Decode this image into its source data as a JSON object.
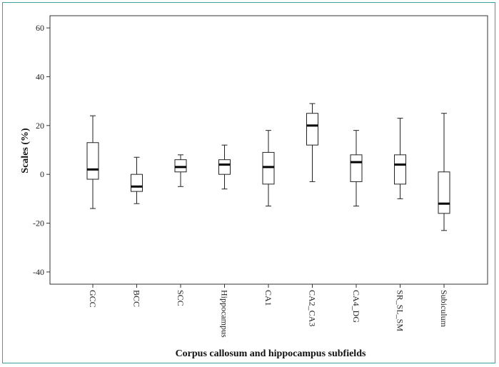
{
  "chart_data": {
    "type": "boxplot",
    "xlabel": "Corpus callosum and hippocampus subfields",
    "ylabel": "Scales (%)",
    "ylim": [
      -45,
      65
    ],
    "yticks": [
      60,
      40,
      20,
      0,
      -20,
      -40
    ],
    "grid": false,
    "categories": [
      "GCC",
      "BCC",
      "SCC",
      "Hippocampus",
      "CA1",
      "CA2_CA3",
      "CA4_DG",
      "SR_SL_SM",
      "Subiculum"
    ],
    "boxes": [
      {
        "min": -14,
        "q1": -2,
        "median": 2,
        "q3": 13,
        "max": 24
      },
      {
        "min": -12,
        "q1": -7,
        "median": -5,
        "q3": 0,
        "max": 7
      },
      {
        "min": -5,
        "q1": 1,
        "median": 3,
        "q3": 6,
        "max": 8
      },
      {
        "min": -6,
        "q1": 0,
        "median": 4,
        "q3": 6,
        "max": 12
      },
      {
        "min": -13,
        "q1": -4,
        "median": 3,
        "q3": 9,
        "max": 18
      },
      {
        "min": -3,
        "q1": 12,
        "median": 20,
        "q3": 25,
        "max": 29
      },
      {
        "min": -13,
        "q1": -3,
        "median": 5,
        "q3": 8,
        "max": 18
      },
      {
        "min": -10,
        "q1": -4,
        "median": 4,
        "q3": 8,
        "max": 23
      },
      {
        "min": -23,
        "q1": -16,
        "median": -12,
        "q3": 1,
        "max": 25
      }
    ]
  }
}
